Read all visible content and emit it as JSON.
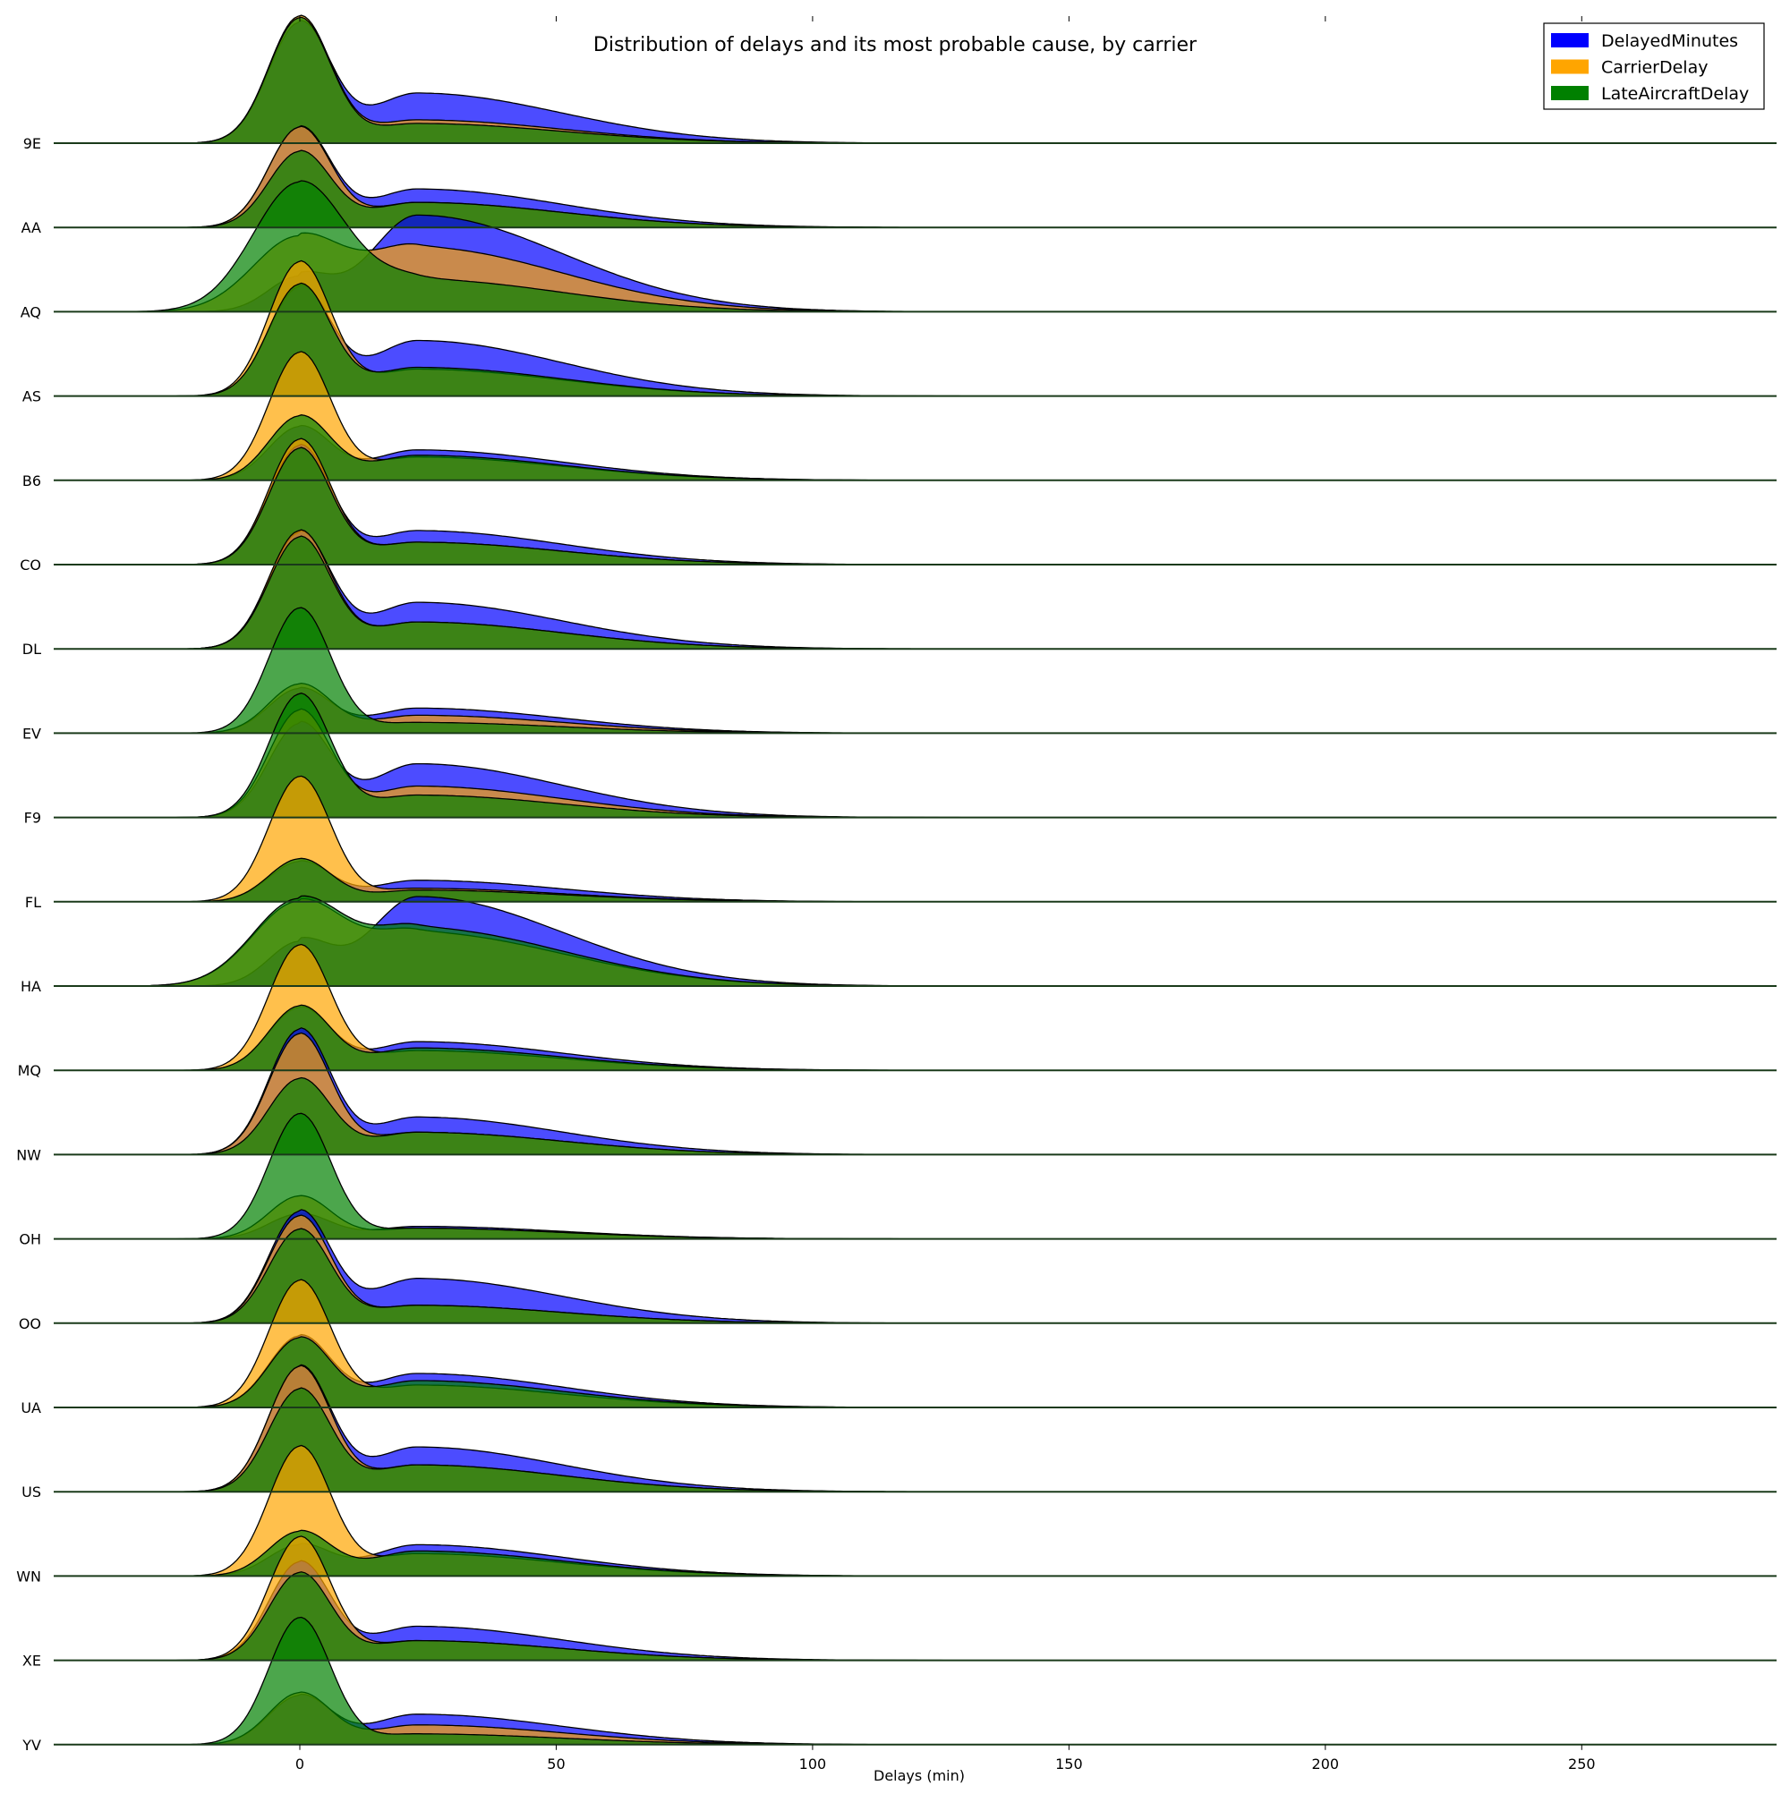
{
  "chart_data": {
    "type": "area",
    "subtype": "ridgeline",
    "title": "Distribution of delays and its most probable cause, by carrier",
    "xlabel": "Delays (min)",
    "ylabel": "",
    "xlim": [
      -48,
      288
    ],
    "xticks": [
      0,
      50,
      100,
      150,
      200,
      250
    ],
    "grid": false,
    "legend_position": "top-right",
    "categories": [
      "9E",
      "AA",
      "AQ",
      "AS",
      "B6",
      "CO",
      "DL",
      "EV",
      "F9",
      "FL",
      "HA",
      "MQ",
      "NW",
      "OH",
      "OO",
      "UA",
      "US",
      "WN",
      "XE",
      "YV"
    ],
    "series": [
      {
        "name": "DelayedMinutes",
        "color": "#0000ff"
      },
      {
        "name": "CarrierDelay",
        "color": "#ffa500"
      },
      {
        "name": "LateAircraftDelay",
        "color": "#008000"
      }
    ],
    "ridges": [
      {
        "carrier": "9E",
        "DelayedMinutes": {
          "peak0": 1.35,
          "peak_secondary": 0.56
        },
        "CarrierDelay": {
          "peak0": 1.42,
          "peak_secondary": 0.26
        },
        "LateAircraftDelay": {
          "peak0": 1.4,
          "peak_secondary": 0.22
        }
      },
      {
        "carrier": "AA",
        "DelayedMinutes": {
          "peak0": 1.12,
          "peak_secondary": 0.43
        },
        "CarrierDelay": {
          "peak0": 1.12,
          "peak_secondary": 0.28
        },
        "LateAircraftDelay": {
          "peak0": 0.85,
          "peak_secondary": 0.28
        }
      },
      {
        "carrier": "AQ",
        "DelayedMinutes": {
          "peak0": 0.4,
          "peak_secondary": 1.08
        },
        "CarrierDelay": {
          "peak0": 0.85,
          "peak_secondary": 0.72
        },
        "LateAircraftDelay": {
          "peak0": 1.45,
          "peak_secondary": 0.36
        }
      },
      {
        "carrier": "AS",
        "DelayedMinutes": {
          "peak0": 1.22,
          "peak_secondary": 0.62
        },
        "CarrierDelay": {
          "peak0": 1.5,
          "peak_secondary": 0.3
        },
        "LateAircraftDelay": {
          "peak0": 1.25,
          "peak_secondary": 0.32
        }
      },
      {
        "carrier": "B6",
        "DelayedMinutes": {
          "peak0": 0.6,
          "peak_secondary": 0.34
        },
        "CarrierDelay": {
          "peak0": 1.43,
          "peak_secondary": 0.26
        },
        "LateAircraftDelay": {
          "peak0": 0.72,
          "peak_secondary": 0.28
        }
      },
      {
        "carrier": "CO",
        "DelayedMinutes": {
          "peak0": 1.33,
          "peak_secondary": 0.38
        },
        "CarrierDelay": {
          "peak0": 1.4,
          "peak_secondary": 0.25
        },
        "LateAircraftDelay": {
          "peak0": 1.3,
          "peak_secondary": 0.25
        }
      },
      {
        "carrier": "DL",
        "DelayedMinutes": {
          "peak0": 1.3,
          "peak_secondary": 0.52
        },
        "CarrierDelay": {
          "peak0": 1.32,
          "peak_secondary": 0.3
        },
        "LateAircraftDelay": {
          "peak0": 1.25,
          "peak_secondary": 0.3
        }
      },
      {
        "carrier": "EV",
        "DelayedMinutes": {
          "peak0": 0.5,
          "peak_secondary": 0.28
        },
        "CarrierDelay": {
          "peak0": 0.55,
          "peak_secondary": 0.2
        },
        "LateAircraftDelay": {
          "peak0": 1.4,
          "peak_secondary": 0.12
        }
      },
      {
        "carrier": "F9",
        "DelayedMinutes": {
          "peak0": 1.05,
          "peak_secondary": 0.6
        },
        "CarrierDelay": {
          "peak0": 1.2,
          "peak_secondary": 0.35
        },
        "LateAircraftDelay": {
          "peak0": 1.38,
          "peak_secondary": 0.25
        }
      },
      {
        "carrier": "FL",
        "DelayedMinutes": {
          "peak0": 0.45,
          "peak_secondary": 0.24
        },
        "CarrierDelay": {
          "peak0": 1.4,
          "peak_secondary": 0.15
        },
        "LateAircraftDelay": {
          "peak0": 0.48,
          "peak_secondary": 0.13
        }
      },
      {
        "carrier": "HA",
        "DelayedMinutes": {
          "peak0": 0.5,
          "peak_secondary": 1.0
        },
        "CarrierDelay": {
          "peak0": 0.95,
          "peak_secondary": 0.6
        },
        "LateAircraftDelay": {
          "peak0": 0.98,
          "peak_secondary": 0.65
        }
      },
      {
        "carrier": "MQ",
        "DelayedMinutes": {
          "peak0": 0.7,
          "peak_secondary": 0.32
        },
        "CarrierDelay": {
          "peak0": 1.4,
          "peak_secondary": 0.22
        },
        "LateAircraftDelay": {
          "peak0": 0.72,
          "peak_secondary": 0.25
        }
      },
      {
        "carrier": "NW",
        "DelayedMinutes": {
          "peak0": 1.4,
          "peak_secondary": 0.42
        },
        "CarrierDelay": {
          "peak0": 1.35,
          "peak_secondary": 0.25
        },
        "LateAircraftDelay": {
          "peak0": 0.85,
          "peak_secondary": 0.25
        }
      },
      {
        "carrier": "OH",
        "DelayedMinutes": {
          "peak0": 0.28,
          "peak_secondary": 0.14
        },
        "CarrierDelay": {
          "peak0": 0.48,
          "peak_secondary": 0.12
        },
        "LateAircraftDelay": {
          "peak0": 1.4,
          "peak_secondary": 0.12
        }
      },
      {
        "carrier": "OO",
        "DelayedMinutes": {
          "peak0": 1.25,
          "peak_secondary": 0.5
        },
        "CarrierDelay": {
          "peak0": 1.2,
          "peak_secondary": 0.2
        },
        "LateAircraftDelay": {
          "peak0": 1.05,
          "peak_secondary": 0.2
        }
      },
      {
        "carrier": "UA",
        "DelayedMinutes": {
          "peak0": 0.8,
          "peak_secondary": 0.38
        },
        "CarrierDelay": {
          "peak0": 1.42,
          "peak_secondary": 0.25
        },
        "LateAircraftDelay": {
          "peak0": 0.78,
          "peak_secondary": 0.3
        }
      },
      {
        "carrier": "US",
        "DelayedMinutes": {
          "peak0": 1.4,
          "peak_secondary": 0.5
        },
        "CarrierDelay": {
          "peak0": 1.4,
          "peak_secondary": 0.3
        },
        "LateAircraftDelay": {
          "peak0": 1.15,
          "peak_secondary": 0.3
        }
      },
      {
        "carrier": "WN",
        "DelayedMinutes": {
          "peak0": 0.35,
          "peak_secondary": 0.35
        },
        "CarrierDelay": {
          "peak0": 1.45,
          "peak_secondary": 0.25
        },
        "LateAircraftDelay": {
          "peak0": 0.5,
          "peak_secondary": 0.28
        }
      },
      {
        "carrier": "XE",
        "DelayedMinutes": {
          "peak0": 1.1,
          "peak_secondary": 0.38
        },
        "CarrierDelay": {
          "peak0": 1.38,
          "peak_secondary": 0.22
        },
        "LateAircraftDelay": {
          "peak0": 0.98,
          "peak_secondary": 0.22
        }
      },
      {
        "carrier": "YV",
        "DelayedMinutes": {
          "peak0": 0.55,
          "peak_secondary": 0.34
        },
        "CarrierDelay": {
          "peak0": 0.58,
          "peak_secondary": 0.22
        },
        "LateAircraftDelay": {
          "peak0": 1.42,
          "peak_secondary": 0.12
        }
      }
    ]
  }
}
